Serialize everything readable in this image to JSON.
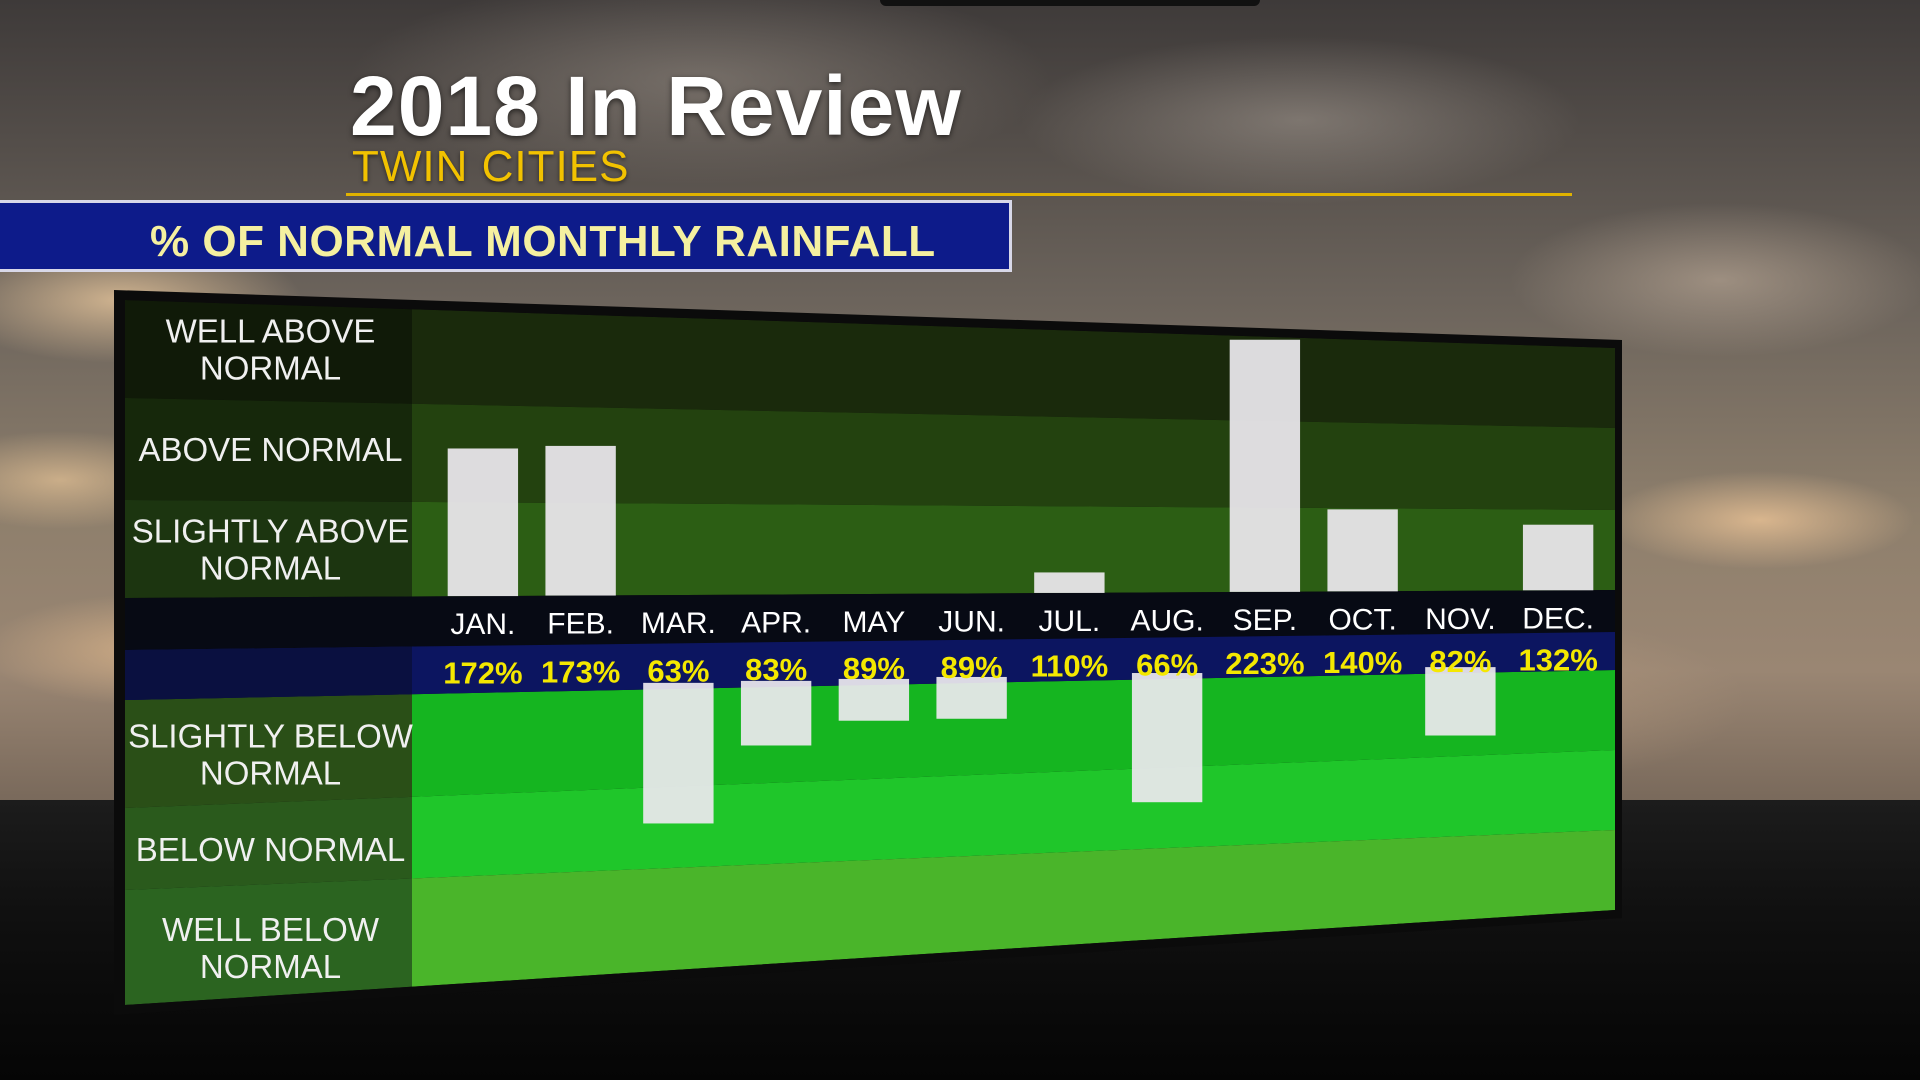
{
  "header": {
    "title": "2018 In Review",
    "subtitle": "TWIN CITIES",
    "banner": "% OF NORMAL MONTHLY RAINFALL"
  },
  "chart_data": {
    "type": "bar",
    "title": "% OF NORMAL MONTHLY RAINFALL",
    "categories": [
      "JAN.",
      "FEB.",
      "MAR.",
      "APR.",
      "MAY",
      "JUN.",
      "JUL.",
      "AUG.",
      "SEP.",
      "OCT.",
      "NOV.",
      "DEC."
    ],
    "values": [
      172,
      173,
      63,
      83,
      89,
      89,
      110,
      66,
      223,
      140,
      82,
      132
    ],
    "value_labels": [
      "172%",
      "173%",
      "63%",
      "83%",
      "89%",
      "89%",
      "110%",
      "66%",
      "223%",
      "140%",
      "82%",
      "132%"
    ],
    "baseline": 100,
    "bands": [
      {
        "label": "WELL ABOVE NORMAL",
        "lines": [
          "WELL ABOVE",
          "NORMAL"
        ]
      },
      {
        "label": "ABOVE NORMAL",
        "lines": [
          "ABOVE NORMAL"
        ]
      },
      {
        "label": "SLIGHTLY ABOVE NORMAL",
        "lines": [
          "SLIGHTLY ABOVE",
          "NORMAL"
        ]
      },
      {
        "label": "SLIGHTLY BELOW NORMAL",
        "lines": [
          "SLIGHTLY BELOW",
          "NORMAL"
        ]
      },
      {
        "label": "BELOW NORMAL",
        "lines": [
          "BELOW NORMAL"
        ]
      },
      {
        "label": "WELL BELOW NORMAL",
        "lines": [
          "WELL BELOW",
          "NORMAL"
        ]
      }
    ],
    "colors": {
      "bar": "#ece8ee",
      "value_text": "#f4e800",
      "band_above_dark": "#1a2a0c",
      "band_above_mid": "#23420f",
      "band_above_light": "#2c5e14",
      "band_below_1": "#15b520",
      "band_below_2": "#1fc62a",
      "band_below_3": "#4ab52a"
    }
  }
}
